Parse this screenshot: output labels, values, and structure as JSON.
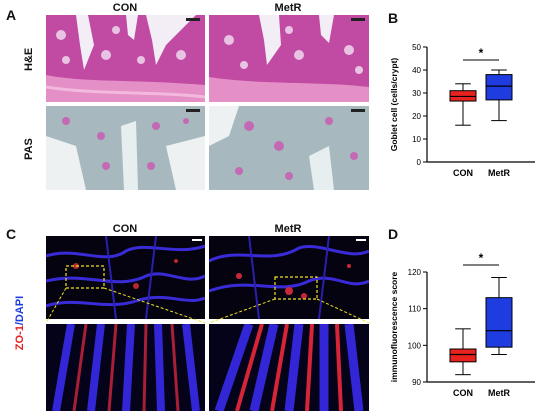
{
  "figure": {
    "panel_a": {
      "letter": "A",
      "col_con": "CON",
      "col_metr": "MetR",
      "row_he": "H&E",
      "row_pas": "PAS"
    },
    "panel_b": {
      "letter": "B"
    },
    "panel_c": {
      "letter": "C",
      "col_con": "CON",
      "col_metr": "MetR",
      "row_zo": "ZO-1",
      "row_sep": "/",
      "row_dapi": "DAPI"
    },
    "panel_d": {
      "letter": "D"
    }
  },
  "chart_data": [
    {
      "type": "boxplot",
      "panel": "B",
      "ylabel": "Goblet cell (cells/crypt)",
      "ylim": [
        0,
        50
      ],
      "yticks": [
        0,
        10,
        20,
        30,
        40,
        50
      ],
      "categories": [
        "CON",
        "MetR"
      ],
      "boxes": [
        {
          "name": "CON",
          "min": 16,
          "q1": 26.5,
          "median": 28.5,
          "q3": 31,
          "max": 34,
          "color": "#e8231f"
        },
        {
          "name": "MetR",
          "min": 18,
          "q1": 27,
          "median": 33,
          "q3": 38,
          "max": 40,
          "color": "#1f3ce0"
        }
      ],
      "significance": "*"
    },
    {
      "type": "boxplot",
      "panel": "D",
      "ylabel": "immunofluorescence score",
      "ylim": [
        90,
        120
      ],
      "yticks": [
        90,
        100,
        110,
        120
      ],
      "categories": [
        "CON",
        "MetR"
      ],
      "boxes": [
        {
          "name": "CON",
          "min": 92,
          "q1": 95.5,
          "median": 97.5,
          "q3": 99,
          "max": 104.5,
          "color": "#e8231f"
        },
        {
          "name": "MetR",
          "min": 97.5,
          "q1": 99.5,
          "median": 104,
          "q3": 113,
          "max": 118.5,
          "color": "#1f3ce0"
        }
      ],
      "significance": "*"
    }
  ]
}
